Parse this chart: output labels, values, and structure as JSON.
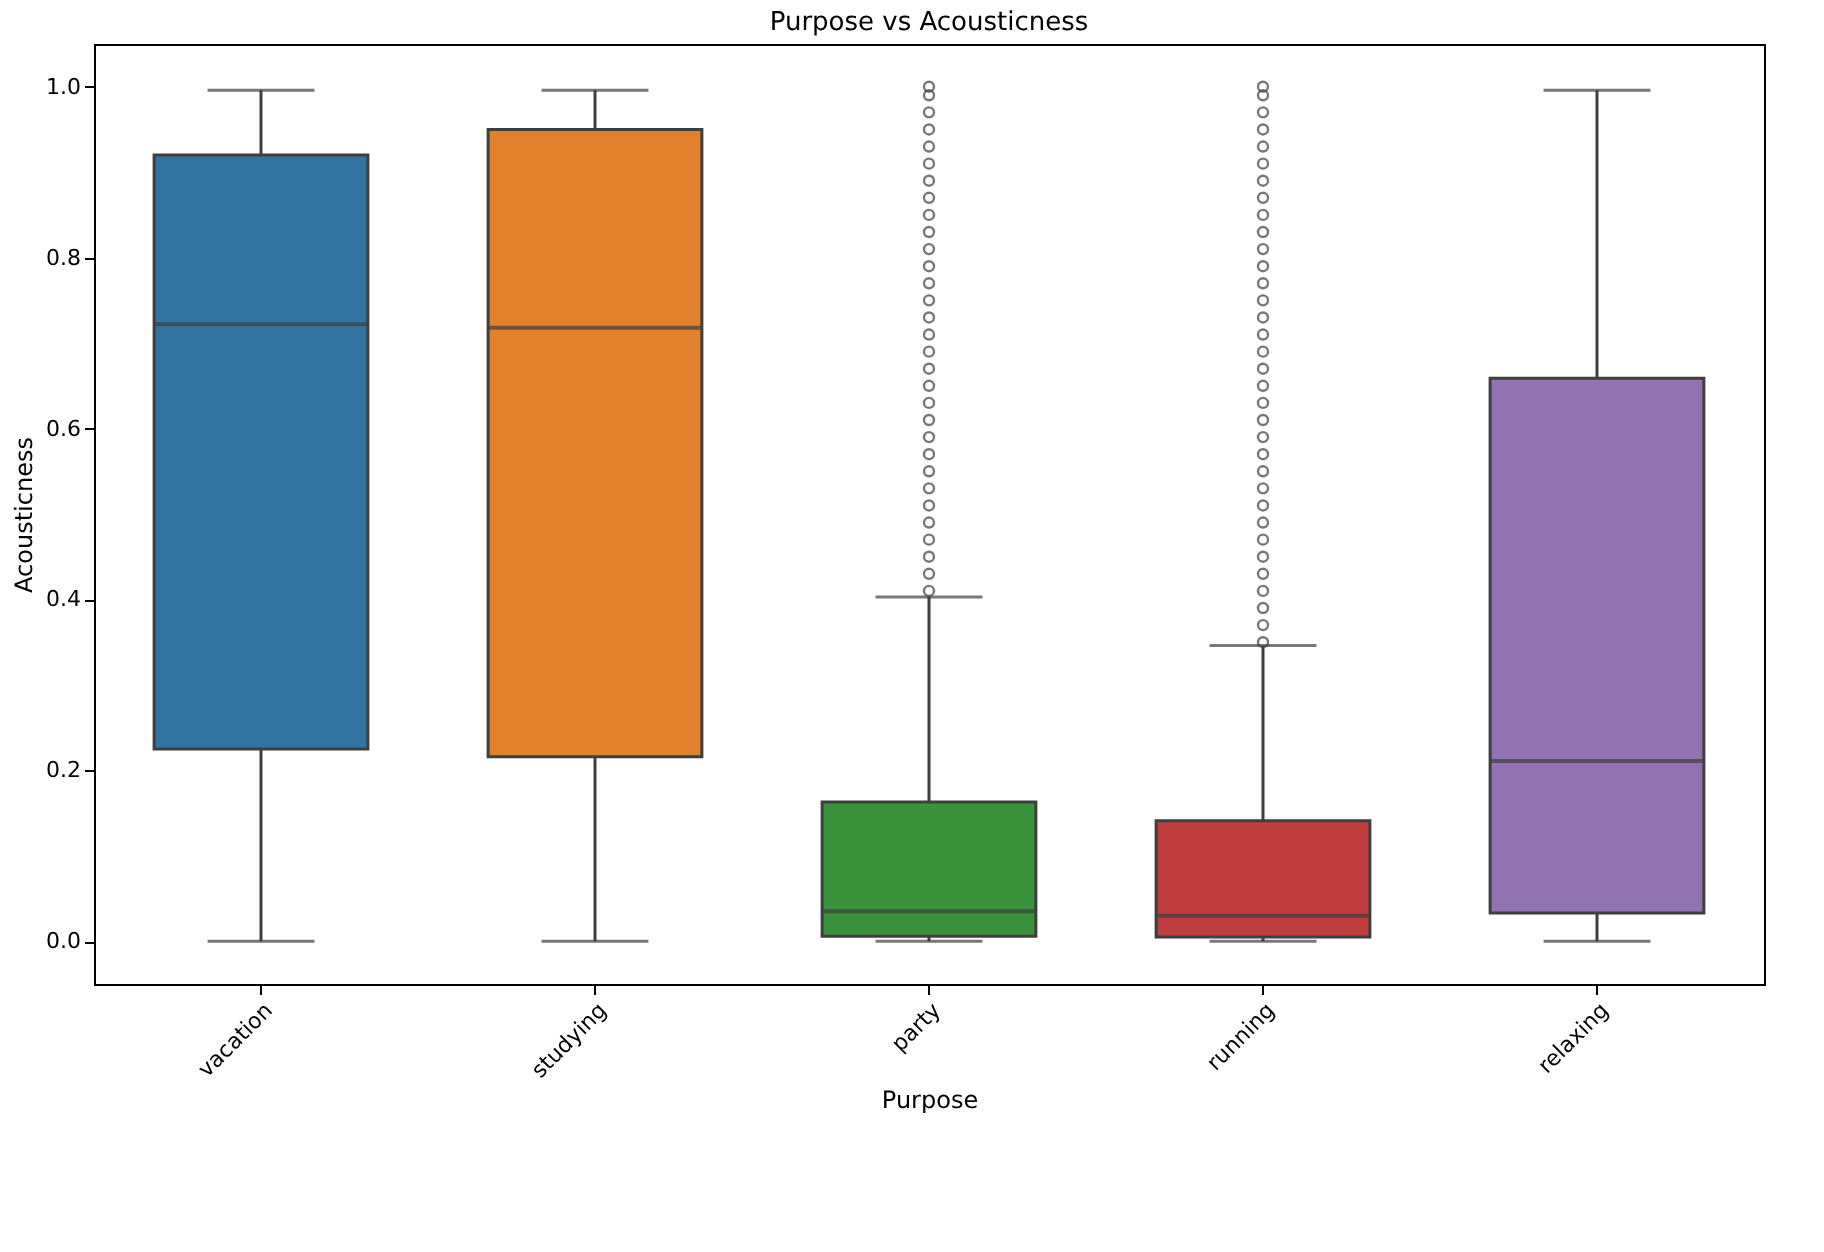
{
  "chart_data": {
    "type": "box",
    "title": "Purpose vs Acousticness",
    "xlabel": "Purpose",
    "ylabel": "Acousticness",
    "categories": [
      "vacation",
      "studying",
      "party",
      "running",
      "relaxing"
    ],
    "colors": [
      "#3274a1",
      "#e1812c",
      "#3a923a",
      "#c03d3e",
      "#9372b2"
    ],
    "boxes": [
      {
        "low": 0.0,
        "q1": 0.225,
        "median": 0.722,
        "q3": 0.92,
        "high": 0.996
      },
      {
        "low": 0.0,
        "q1": 0.216,
        "median": 0.718,
        "q3": 0.95,
        "high": 0.996
      },
      {
        "low": 0.0,
        "q1": 0.006,
        "median": 0.035,
        "q3": 0.163,
        "high": 0.403,
        "outliers": [
          0.41,
          0.43,
          0.45,
          0.47,
          0.49,
          0.51,
          0.53,
          0.55,
          0.57,
          0.59,
          0.61,
          0.63,
          0.65,
          0.67,
          0.69,
          0.71,
          0.73,
          0.75,
          0.77,
          0.79,
          0.81,
          0.83,
          0.85,
          0.87,
          0.89,
          0.91,
          0.93,
          0.95,
          0.97,
          0.99,
          1.0
        ]
      },
      {
        "low": 0.0,
        "q1": 0.005,
        "median": 0.03,
        "q3": 0.141,
        "high": 0.346,
        "outliers": [
          0.35,
          0.37,
          0.39,
          0.41,
          0.43,
          0.45,
          0.47,
          0.49,
          0.51,
          0.53,
          0.55,
          0.57,
          0.59,
          0.61,
          0.63,
          0.65,
          0.67,
          0.69,
          0.71,
          0.73,
          0.75,
          0.77,
          0.79,
          0.81,
          0.83,
          0.85,
          0.87,
          0.89,
          0.91,
          0.93,
          0.95,
          0.97,
          0.99,
          1.0
        ]
      },
      {
        "low": 0.0,
        "q1": 0.033,
        "median": 0.211,
        "q3": 0.659,
        "high": 0.996
      }
    ],
    "ylim": [
      -0.05,
      1.05
    ],
    "yticks": [
      {
        "value": 0,
        "label": "0.0"
      },
      {
        "value": 0.2,
        "label": "0.2"
      },
      {
        "value": 0.4,
        "label": "0.4"
      },
      {
        "value": 0.6,
        "label": "0.6"
      },
      {
        "value": 0.8,
        "label": "0.8"
      },
      {
        "value": 1,
        "label": "1.0"
      }
    ],
    "grid": false
  }
}
